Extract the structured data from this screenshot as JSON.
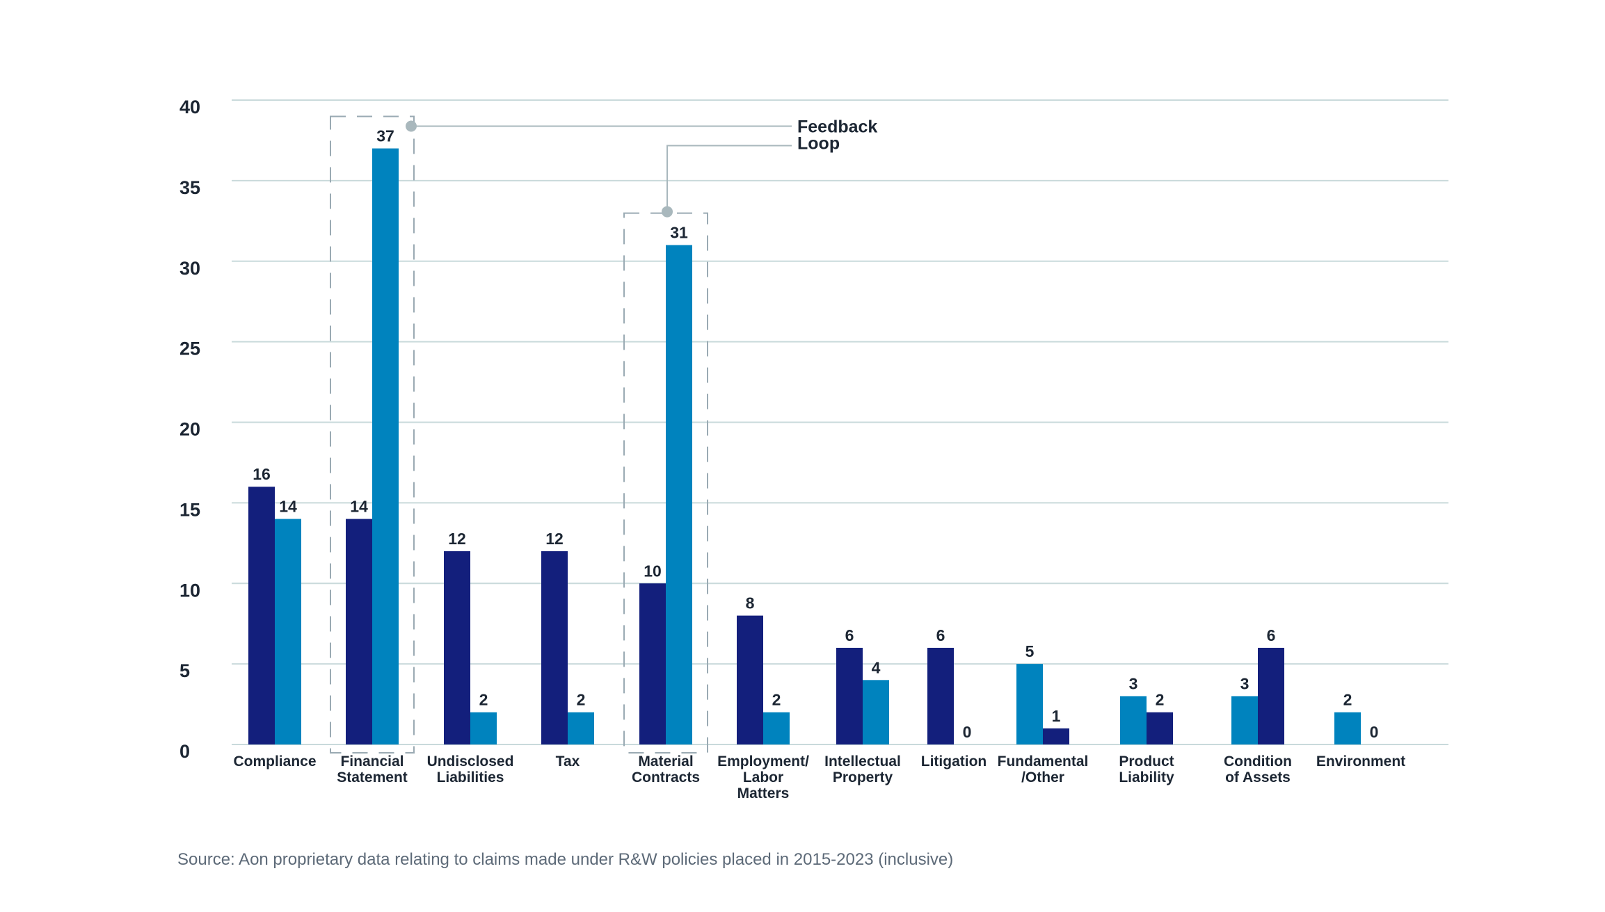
{
  "chart_data": {
    "type": "bar",
    "title": "",
    "xlabel": "",
    "ylabel": "",
    "ylim": [
      0,
      40
    ],
    "yticks": [
      0,
      5,
      10,
      15,
      20,
      25,
      30,
      35,
      40
    ],
    "grid": true,
    "categories": [
      [
        "Compliance"
      ],
      [
        "Financial",
        "Statement"
      ],
      [
        "Undisclosed",
        "Liabilities"
      ],
      [
        "Tax"
      ],
      [
        "Material",
        "Contracts"
      ],
      [
        "Employment/",
        "Labor",
        "Matters"
      ],
      [
        "Intellectual",
        "Property"
      ],
      [
        "Litigation"
      ],
      [
        "Fundamental",
        "/Other"
      ],
      [
        "Product",
        "Liability"
      ],
      [
        "Condition",
        "of Assets"
      ],
      [
        "Environment"
      ]
    ],
    "bars": [
      [
        {
          "value": 16,
          "color": "navy"
        },
        {
          "value": 14,
          "color": "blue"
        }
      ],
      [
        {
          "value": 14,
          "color": "navy"
        },
        {
          "value": 37,
          "color": "blue"
        }
      ],
      [
        {
          "value": 12,
          "color": "navy"
        },
        {
          "value": 2,
          "color": "blue"
        }
      ],
      [
        {
          "value": 12,
          "color": "navy"
        },
        {
          "value": 2,
          "color": "blue"
        }
      ],
      [
        {
          "value": 10,
          "color": "navy"
        },
        {
          "value": 31,
          "color": "blue"
        }
      ],
      [
        {
          "value": 8,
          "color": "navy"
        },
        {
          "value": 2,
          "color": "blue"
        }
      ],
      [
        {
          "value": 6,
          "color": "navy"
        },
        {
          "value": 4,
          "color": "blue"
        }
      ],
      [
        {
          "value": 6,
          "color": "navy"
        },
        {
          "value": 0,
          "color": "blue"
        }
      ],
      [
        {
          "value": 5,
          "color": "blue"
        },
        {
          "value": 1,
          "color": "navy"
        }
      ],
      [
        {
          "value": 3,
          "color": "blue"
        },
        {
          "value": 2,
          "color": "navy"
        }
      ],
      [
        {
          "value": 3,
          "color": "blue"
        },
        {
          "value": 6,
          "color": "navy"
        }
      ],
      [
        {
          "value": 2,
          "color": "blue"
        },
        {
          "value": 0,
          "color": "navy"
        }
      ]
    ],
    "highlighted_categories": [
      1,
      4
    ],
    "annotation": {
      "lines": [
        "Feedback",
        "Loop"
      ]
    },
    "colors": {
      "navy": "#131f7c",
      "blue": "#0083be",
      "grid": "#c9dadb",
      "annotation": "#a9b8bd",
      "text": "#1c2633"
    }
  },
  "source_note": "Source: Aon proprietary data relating to claims made under R&W policies placed in 2015-2023 (inclusive)"
}
